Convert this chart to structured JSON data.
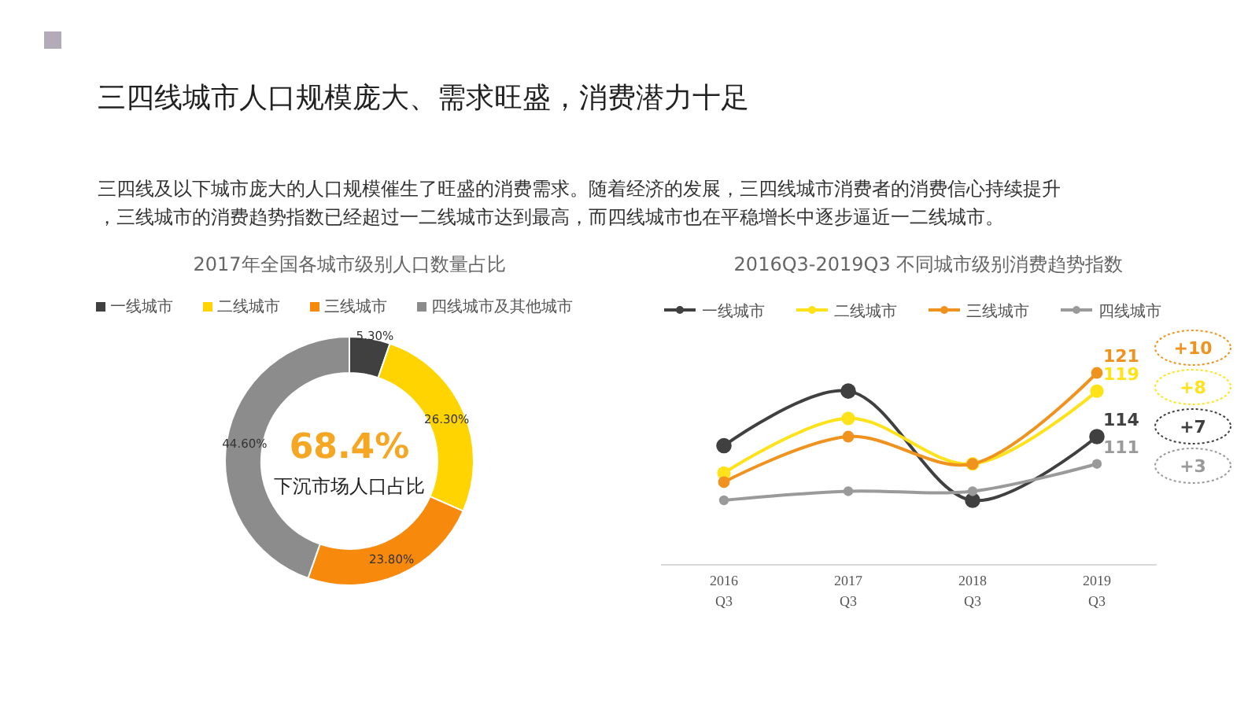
{
  "chart_data": [
    {
      "type": "other",
      "title": "三四线城市人口规模庞大、需求旺盛，消费潜力十足",
      "annotations": [
        "三四线及以下城市庞大的人口规模催生了旺盛的消费需求。随着经济的发展，三四线城市消费者的消费信心持续提升，三线城市的消费趋势指数已经超过一二线城市达到最高，而四线城市也在平稳增长中逐步逼近一二线城市。"
      ]
    },
    {
      "type": "donut",
      "title": "2017年全国各城市级别人口数量占比",
      "categories": [
        "一线城市",
        "二线城市",
        "三线城市",
        "四线城市及其他城市"
      ],
      "values": [
        5.3,
        26.3,
        23.8,
        44.6
      ],
      "value_labels": [
        "5.30%",
        "26.30%",
        "23.80%",
        "44.60%"
      ],
      "colors": [
        "#404040",
        "#ffd400",
        "#f7890c",
        "#8c8c8c"
      ],
      "legend": "top",
      "annotations": [
        "68.4%",
        "下沉市场人口占比"
      ]
    },
    {
      "type": "line",
      "title": "2016Q3-2019Q3 不同城市级别消费趋势指数",
      "categories": [
        "2016\nQ3",
        "2017\nQ3",
        "2018\nQ3",
        "2019\nQ3"
      ],
      "legend": "top",
      "marker": "circle",
      "tick_labels": "x",
      "series": [
        {
          "name": "一线城市",
          "color": "#404040",
          "values": [
            113,
            119,
            107,
            114
          ],
          "value_labels": [
            null,
            null,
            null,
            "114"
          ]
        },
        {
          "name": "二线城市",
          "color": "#ffe21a",
          "values": [
            110,
            116,
            111,
            119
          ],
          "value_labels": [
            null,
            null,
            null,
            "119"
          ]
        },
        {
          "name": "三线城市",
          "color": "#f0921e",
          "values": [
            109,
            114,
            111,
            121
          ],
          "value_labels": [
            null,
            null,
            null,
            "121"
          ]
        },
        {
          "name": "四线城市",
          "color": "#9a9a9a",
          "values": [
            107,
            108,
            108,
            111
          ],
          "value_labels": [
            null,
            null,
            null,
            "111"
          ]
        }
      ],
      "annotations": [
        "+10",
        "+8",
        "+7",
        "+3"
      ]
    }
  ]
}
